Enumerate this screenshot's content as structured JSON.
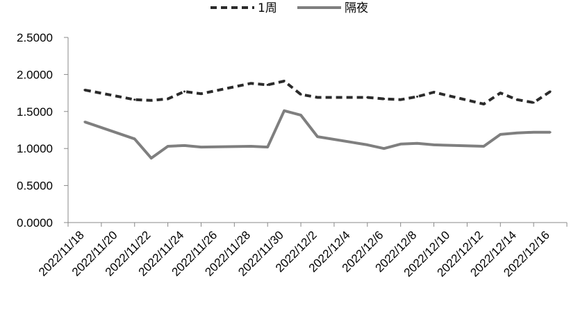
{
  "chart_data": {
    "type": "line",
    "title": "",
    "xlabel": "",
    "ylabel": "",
    "ylim": [
      0,
      2.5
    ],
    "grid": false,
    "legend_position": "top",
    "x_tick_labels": [
      "2022/11/18",
      "2022/11/20",
      "2022/11/22",
      "2022/11/24",
      "2022/11/26",
      "2022/11/28",
      "2022/11/30",
      "2022/12/2",
      "2022/12/4",
      "2022/12/6",
      "2022/12/8",
      "2022/12/10",
      "2022/12/12",
      "2022/12/14",
      "2022/12/16"
    ],
    "y_tick_labels": [
      "0.0000",
      "0.5000",
      "1.0000",
      "1.5000",
      "2.0000",
      "2.5000"
    ],
    "x": [
      "2022-11-18",
      "2022-11-21",
      "2022-11-22",
      "2022-11-23",
      "2022-11-24",
      "2022-11-25",
      "2022-11-28",
      "2022-11-29",
      "2022-11-30",
      "2022-12-01",
      "2022-12-02",
      "2022-12-05",
      "2022-12-06",
      "2022-12-07",
      "2022-12-08",
      "2022-12-09",
      "2022-12-12",
      "2022-12-13",
      "2022-12-14",
      "2022-12-15",
      "2022-12-16"
    ],
    "series": [
      {
        "name": "1周",
        "color": "#2b2b2b",
        "style": "dashed",
        "values": [
          1.79,
          1.66,
          1.65,
          1.67,
          1.77,
          1.74,
          1.88,
          1.86,
          1.91,
          1.73,
          1.69,
          1.69,
          1.67,
          1.66,
          1.7,
          1.76,
          1.6,
          1.75,
          1.66,
          1.62,
          1.77
        ]
      },
      {
        "name": "隔夜",
        "color": "#7f7f7f",
        "style": "solid",
        "values": [
          1.36,
          1.13,
          0.87,
          1.03,
          1.04,
          1.02,
          1.03,
          1.02,
          1.51,
          1.45,
          1.16,
          1.05,
          1.0,
          1.06,
          1.07,
          1.05,
          1.03,
          1.19,
          1.21,
          1.22,
          1.22
        ]
      }
    ]
  }
}
